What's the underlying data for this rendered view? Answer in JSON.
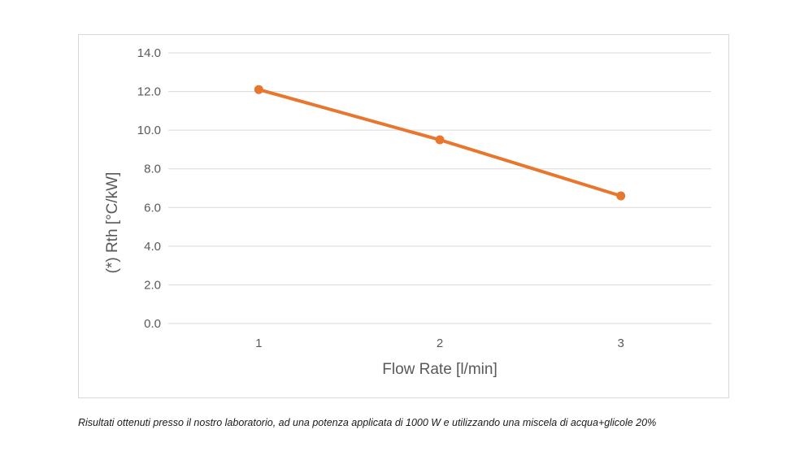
{
  "chart_data": {
    "type": "line",
    "title": "",
    "xlabel": "Flow Rate [l/min]",
    "ylabel": "(*) Rth [°C/kW]",
    "categories": [
      "1",
      "2",
      "3"
    ],
    "series": [
      {
        "values": [
          12.1,
          9.5,
          6.6
        ],
        "color": "#E8762D"
      }
    ],
    "ylim": [
      0,
      14
    ],
    "yticks": [
      0,
      2,
      4,
      6,
      8,
      10,
      12,
      14
    ],
    "ytick_labels": [
      "0.0",
      "2.0",
      "4.0",
      "6.0",
      "8.0",
      "10.0",
      "12.0",
      "14.0"
    ],
    "grid": true,
    "legend": "none"
  },
  "caption": "Risultati ottenuti presso il nostro laboratorio, ad una potenza applicata di 1000 W e utilizzando una miscela di acqua+glicole 20%",
  "colors": {
    "line": "#E8762D",
    "grid": "#d9d9d9",
    "text": "#595959"
  }
}
